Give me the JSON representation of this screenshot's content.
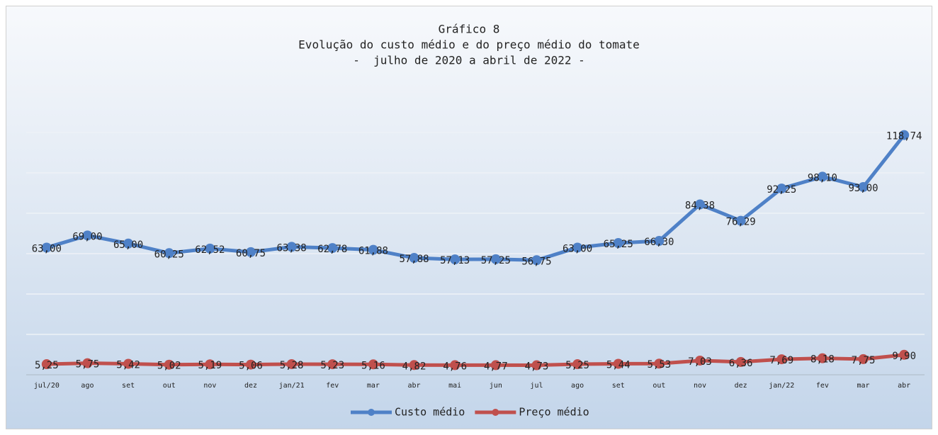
{
  "chart_data": {
    "type": "line",
    "title": "Gráfico 8",
    "subtitle": "Evolução do custo médio e do preço médio do tomate",
    "subtitle2": "-  julho de 2020 a abril de 2022 -",
    "categories": [
      "jul/20",
      "ago",
      "set",
      "out",
      "nov",
      "dez",
      "jan/21",
      "fev",
      "mar",
      "abr",
      "mai",
      "jun",
      "jul",
      "ago",
      "set",
      "out",
      "nov",
      "dez",
      "jan/22",
      "fev",
      "mar",
      "abr"
    ],
    "series": [
      {
        "name": "Custo médio",
        "color": "#4f81c7",
        "values": [
          63.0,
          69.0,
          65.0,
          60.25,
          62.52,
          60.75,
          63.38,
          62.78,
          61.88,
          57.88,
          57.13,
          57.25,
          56.75,
          63.0,
          65.25,
          66.3,
          84.38,
          76.29,
          92.25,
          98.1,
          93.0,
          118.74
        ],
        "value_labels": [
          "63,00",
          "69,00",
          "65,00",
          "60,25",
          "62,52",
          "60,75",
          "63,38",
          "62,78",
          "61,88",
          "57,88",
          "57,13",
          "57,25",
          "56,75",
          "63,00",
          "65,25",
          "66,30",
          "84,38",
          "76,29",
          "92,25",
          "98,10",
          "93,00",
          "118,74"
        ]
      },
      {
        "name": "Preço médio",
        "color": "#c0504d",
        "values": [
          5.25,
          5.75,
          5.42,
          5.02,
          5.19,
          5.06,
          5.28,
          5.23,
          5.16,
          4.82,
          4.76,
          4.77,
          4.73,
          5.25,
          5.44,
          5.53,
          7.03,
          6.36,
          7.69,
          8.18,
          7.75,
          9.9
        ],
        "value_labels": [
          "5,25",
          "5,75",
          "5,42",
          "5,02",
          "5,19",
          "5,06",
          "5,28",
          "5,23",
          "5,16",
          "4,82",
          "4,76",
          "4,77",
          "4,73",
          "5,25",
          "5,44",
          "5,53",
          "7,03",
          "6,36",
          "7,69",
          "8,18",
          "7,75",
          "9,90"
        ]
      }
    ],
    "ylim": [
      0,
      140
    ],
    "yticks": [
      0,
      20,
      40,
      60,
      80,
      100,
      120,
      140
    ],
    "grid": true,
    "legend": "bottom"
  }
}
